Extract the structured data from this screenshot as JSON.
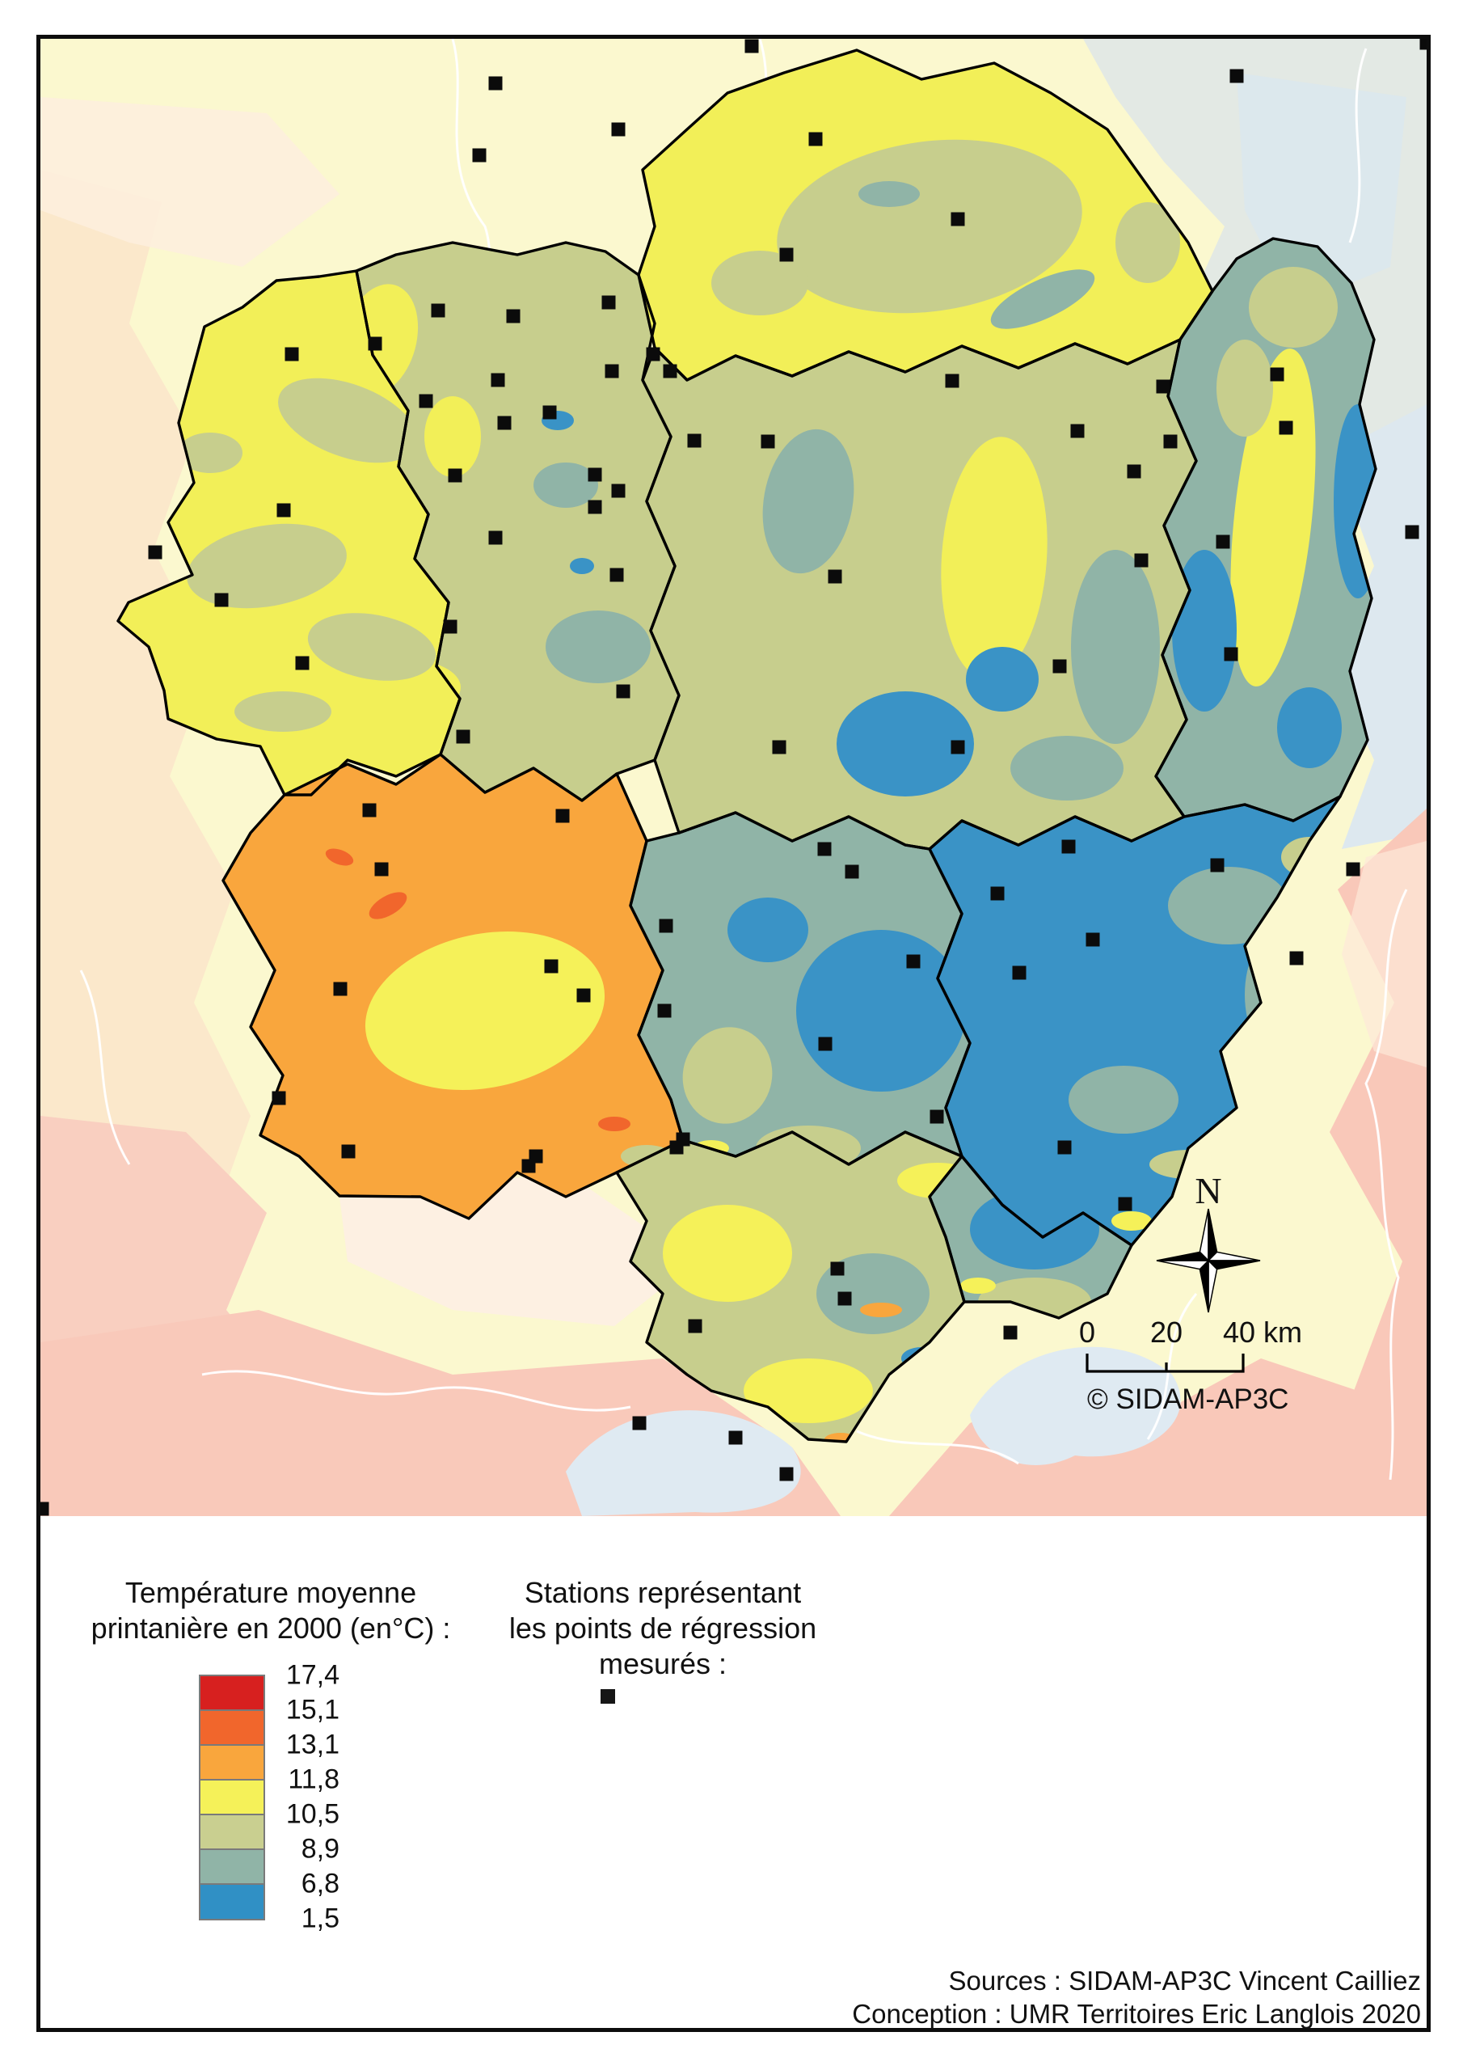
{
  "map": {
    "north_label": "N",
    "copyright": "© SIDAM-AP3C",
    "scale_labels": [
      "0",
      "20",
      "40 km"
    ],
    "stations": [
      [
        930,
        57
      ],
      [
        613,
        103
      ],
      [
        765,
        160
      ],
      [
        593,
        192
      ],
      [
        1530,
        94
      ],
      [
        1765,
        53
      ],
      [
        542,
        384
      ],
      [
        635,
        391
      ],
      [
        753,
        374
      ],
      [
        464,
        425
      ],
      [
        361,
        438
      ],
      [
        808,
        438
      ],
      [
        757,
        459
      ],
      [
        829,
        459
      ],
      [
        527,
        496
      ],
      [
        616,
        470
      ],
      [
        624,
        523
      ],
      [
        680,
        510
      ],
      [
        563,
        588
      ],
      [
        859,
        545
      ],
      [
        736,
        587
      ],
      [
        765,
        607
      ],
      [
        736,
        627
      ],
      [
        351,
        631
      ],
      [
        192,
        683
      ],
      [
        274,
        742
      ],
      [
        374,
        820
      ],
      [
        557,
        775
      ],
      [
        613,
        665
      ],
      [
        763,
        711
      ],
      [
        771,
        855
      ],
      [
        1009,
        172
      ],
      [
        1185,
        271
      ],
      [
        973,
        315
      ],
      [
        1178,
        471
      ],
      [
        950,
        546
      ],
      [
        1333,
        533
      ],
      [
        1448,
        546
      ],
      [
        1591,
        529
      ],
      [
        1412,
        693
      ],
      [
        1523,
        809
      ],
      [
        1033,
        713
      ],
      [
        1311,
        824
      ],
      [
        1439,
        478
      ],
      [
        1580,
        463
      ],
      [
        1403,
        583
      ],
      [
        1513,
        670
      ],
      [
        1747,
        658
      ],
      [
        573,
        911
      ],
      [
        457,
        1002
      ],
      [
        696,
        1009
      ],
      [
        472,
        1075
      ],
      [
        421,
        1223
      ],
      [
        682,
        1195
      ],
      [
        722,
        1231
      ],
      [
        824,
        1145
      ],
      [
        822,
        1250
      ],
      [
        345,
        1358
      ],
      [
        431,
        1424
      ],
      [
        663,
        1430
      ],
      [
        845,
        1409
      ],
      [
        964,
        924
      ],
      [
        1185,
        924
      ],
      [
        1020,
        1050
      ],
      [
        1054,
        1078
      ],
      [
        1234,
        1105
      ],
      [
        1322,
        1047
      ],
      [
        1506,
        1070
      ],
      [
        1352,
        1162
      ],
      [
        1674,
        1075
      ],
      [
        1130,
        1189
      ],
      [
        1261,
        1203
      ],
      [
        1604,
        1185
      ],
      [
        1021,
        1291
      ],
      [
        1159,
        1381
      ],
      [
        1317,
        1419
      ],
      [
        1392,
        1489
      ],
      [
        1036,
        1569
      ],
      [
        1250,
        1648
      ],
      [
        654,
        1442
      ],
      [
        837,
        1419
      ],
      [
        1045,
        1606
      ],
      [
        791,
        1760
      ],
      [
        910,
        1778
      ],
      [
        973,
        1823
      ],
      [
        860,
        1640
      ],
      [
        52,
        1866
      ]
    ]
  },
  "legend": {
    "temperature": {
      "title_line1": "Température moyenne",
      "title_line2": "printanière en 2000 (en°C) :",
      "values": [
        "17,4",
        "15,1",
        "13,1",
        "11,8",
        "10,5",
        "8,9",
        "6,8",
        "1,5"
      ],
      "colors": [
        "#d7201f",
        "#f1662c",
        "#f9a63d",
        "#f5f159",
        "#c9cf90",
        "#90b4a7",
        "#3090c5"
      ]
    },
    "stations": {
      "title_line1": "Stations représentant",
      "title_line2": "les points de régression",
      "title_line3": "mesurés :"
    }
  },
  "credits": {
    "sources_line": "Sources : SIDAM-AP3C Vincent Cailliez",
    "conception_line": "Conception : UMR Territoires Eric Langlois  2020"
  }
}
